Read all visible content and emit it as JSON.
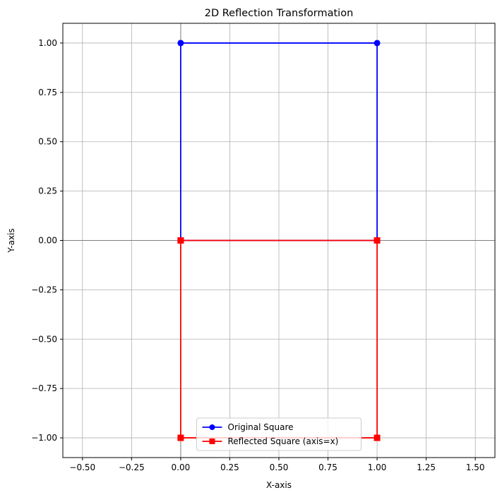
{
  "chart_data": {
    "type": "line",
    "title": "2D Reflection Transformation",
    "xlabel": "X-axis",
    "ylabel": "Y-axis",
    "xlim": [
      -0.6,
      1.6
    ],
    "ylim": [
      -1.1,
      1.1
    ],
    "xticks": [
      -0.5,
      -0.25,
      0,
      0.25,
      0.5,
      0.75,
      1,
      1.25,
      1.5
    ],
    "xtick_labels": [
      "−0.50",
      "−0.25",
      "0.00",
      "0.25",
      "0.50",
      "0.75",
      "1.00",
      "1.25",
      "1.50"
    ],
    "yticks": [
      1,
      0.75,
      0.5,
      0.25,
      0,
      -0.25,
      -0.5,
      -0.75,
      -1
    ],
    "ytick_labels": [
      "1.00",
      "0.75",
      "0.50",
      "0.25",
      "0.00",
      "−0.25",
      "−0.50",
      "−0.75",
      "−1.00"
    ],
    "grid": true,
    "reference_lines": {
      "x": 0,
      "y": 0,
      "color": "#808080"
    },
    "legend_position": "lower center",
    "series": [
      {
        "name": "Original Square",
        "color": "#0000ff",
        "marker": "circle",
        "x": [
          0,
          1,
          1,
          0,
          0
        ],
        "y": [
          0,
          0,
          1,
          1,
          0
        ]
      },
      {
        "name": "Reflected Square (axis=x)",
        "color": "#ff0000",
        "marker": "square",
        "x": [
          0,
          1,
          1,
          0,
          0
        ],
        "y": [
          0,
          0,
          -1,
          -1,
          0
        ]
      }
    ]
  }
}
